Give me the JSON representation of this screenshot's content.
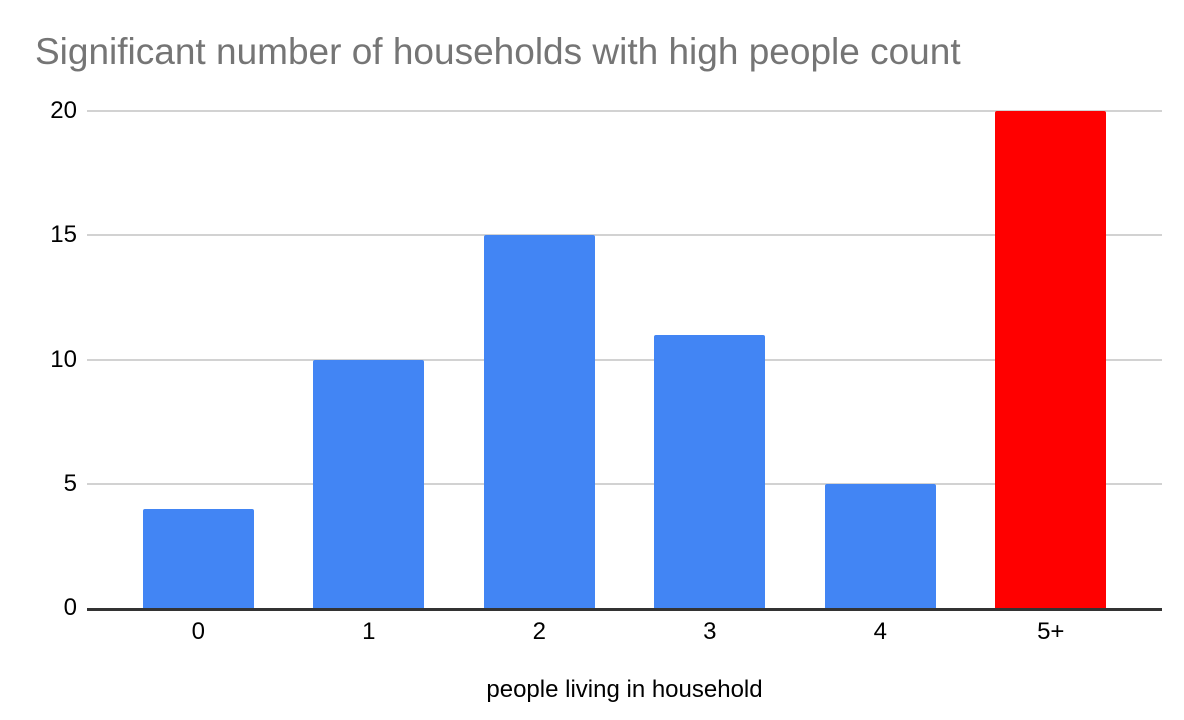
{
  "chart_data": {
    "type": "bar",
    "title": "Significant number of households with high people count",
    "categories": [
      "0",
      "1",
      "2",
      "3",
      "4",
      "5+"
    ],
    "values": [
      4,
      10,
      15,
      11,
      5,
      20
    ],
    "bar_colors": [
      "#4285f4",
      "#4285f4",
      "#4285f4",
      "#4285f4",
      "#4285f4",
      "#ff0000"
    ],
    "xlabel": "people living in household",
    "ylabel": "",
    "ylim": [
      0,
      20
    ],
    "yticks": [
      0,
      5,
      10,
      15,
      20
    ],
    "grid": true,
    "legend": "none"
  },
  "colors": {
    "title_text": "#757575",
    "axis_text": "#000000",
    "gridline": "#d2d2d2",
    "axis_line": "#333333",
    "default_bar": "#4285f4",
    "highlight_bar": "#ff0000",
    "background": "#ffffff"
  }
}
